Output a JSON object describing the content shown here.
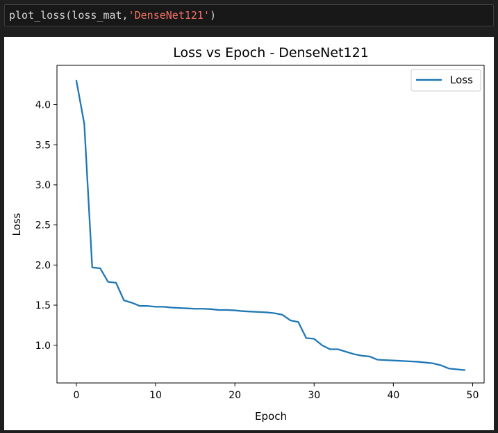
{
  "cell": {
    "code_fn": "plot_loss(loss_mat,",
    "code_arg": "'DenseNet121'",
    "code_end": ")"
  },
  "chart_data": {
    "type": "line",
    "title": "Loss vs Epoch - DenseNet121",
    "xlabel": "Epoch",
    "ylabel": "Loss",
    "legend": "upper-right",
    "grid": false,
    "xlim": [
      -2.45,
      51.45
    ],
    "ylim": [
      0.53,
      4.49
    ],
    "xticks": [
      0,
      10,
      20,
      30,
      40,
      50
    ],
    "yticks": [
      1.0,
      1.5,
      2.0,
      2.5,
      3.0,
      3.5,
      4.0
    ],
    "xtick_labels": [
      "0",
      "10",
      "20",
      "30",
      "40",
      "50"
    ],
    "ytick_labels": [
      "1.0",
      "1.5",
      "2.0",
      "2.5",
      "3.0",
      "3.5",
      "4.0"
    ],
    "series": [
      {
        "name": "Loss",
        "color": "#1f77b4",
        "x": [
          0,
          1,
          2,
          3,
          4,
          5,
          6,
          7,
          8,
          9,
          10,
          11,
          12,
          13,
          14,
          15,
          16,
          17,
          18,
          19,
          20,
          21,
          22,
          23,
          24,
          25,
          26,
          27,
          28,
          29,
          30,
          31,
          32,
          33,
          34,
          35,
          36,
          37,
          38,
          39,
          40,
          41,
          42,
          43,
          44,
          45,
          46,
          47,
          48,
          49
        ],
        "y": [
          4.3,
          3.76,
          1.97,
          1.96,
          1.79,
          1.78,
          1.56,
          1.53,
          1.49,
          1.49,
          1.48,
          1.48,
          1.47,
          1.465,
          1.46,
          1.455,
          1.455,
          1.45,
          1.44,
          1.44,
          1.435,
          1.425,
          1.42,
          1.415,
          1.41,
          1.4,
          1.38,
          1.31,
          1.29,
          1.09,
          1.08,
          1.0,
          0.95,
          0.95,
          0.92,
          0.89,
          0.87,
          0.86,
          0.82,
          0.815,
          0.81,
          0.805,
          0.8,
          0.795,
          0.785,
          0.775,
          0.75,
          0.71,
          0.7,
          0.69
        ]
      }
    ]
  }
}
